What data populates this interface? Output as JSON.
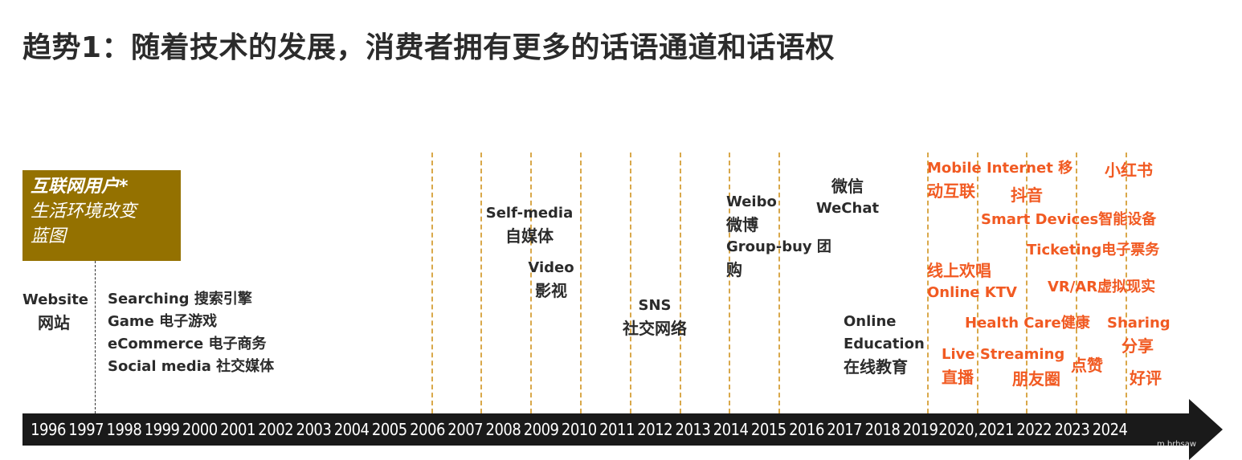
{
  "title": "趋势1：随着技术的发展，消费者拥有更多的话语通道和话语权",
  "badge": {
    "line1": "互联网用户*",
    "line2": "生活环境改变",
    "line3": "蓝图"
  },
  "website": {
    "en": "Website",
    "cn": "网站"
  },
  "early_list": [
    "Searching 搜索引擎",
    "Game 电子游戏",
    "eCommerce 电子商务",
    "Social media 社交媒体"
  ],
  "selfmedia": {
    "en": "Self-media",
    "cn": "自媒体"
  },
  "video": {
    "en": "Video",
    "cn": "影视"
  },
  "sns": {
    "en": "SNS",
    "cn": "社交网络"
  },
  "weibo": {
    "en": "Weibo",
    "cn": "微博",
    "groupbuy1": "Group-buy 团",
    "groupbuy2": "购"
  },
  "wechat": {
    "cn": "微信",
    "en": "WeChat"
  },
  "education": {
    "l1": "Online",
    "l2": "Education",
    "l3": "在线教育"
  },
  "orange": {
    "mobile1": "Mobile Internet 移",
    "mobile2": "动互联",
    "xiaohongshu": "小红书",
    "douyin": "抖音",
    "smart": "Smart Devices智能设备",
    "ticketing": "Ticketing电子票务",
    "ktv1": "线上欢唱",
    "ktv2": "Online KTV",
    "vrar": "VR/AR虚拟现实",
    "health": "Health Care健康",
    "sharing1": "Sharing",
    "sharing2": "分享",
    "live": "Live Streaming",
    "zhibo": "直播",
    "dianzan": "点赞",
    "pengyouquan": "朋友圈",
    "haoping": "好评"
  },
  "years": [
    "1996",
    "1997",
    "1998",
    "1999",
    "2000",
    "2001",
    "2002",
    "2003",
    "2004",
    "2005",
    "2006",
    "2007",
    "2008",
    "2009",
    "2010",
    "2011",
    "2012",
    "2013",
    "2014",
    "2015",
    "2016",
    "2017",
    "2018",
    "2019",
    "2020,",
    "2021",
    "2022",
    "2023",
    "2024"
  ],
  "watermark": "m brhsaw",
  "colors": {
    "accent_orange": "#f15a22",
    "badge_gold": "#947100",
    "guide_line": "#d9a84a",
    "axis": "#1a1a1a"
  }
}
